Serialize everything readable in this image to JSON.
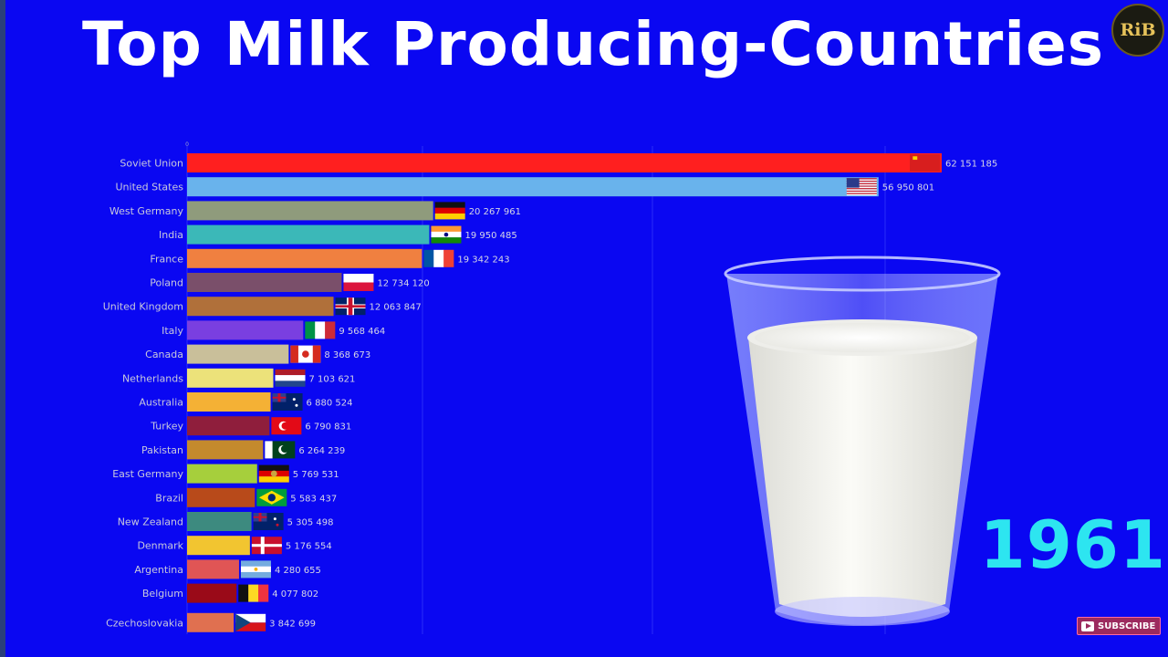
{
  "header": {
    "title": "Top Milk Producing-Countries"
  },
  "logo": {
    "text": "RiB"
  },
  "year": "1961",
  "subscribe": {
    "label": "SUBSCRIBE"
  },
  "chart_data": {
    "type": "bar",
    "orientation": "horizontal",
    "title": "Top Milk Producing-Countries",
    "period": "1961",
    "x_ticks": [
      0
    ],
    "xlim": [
      0,
      63000000
    ],
    "grid": true,
    "categories": [
      "Soviet Union",
      "United States",
      "West Germany",
      "India",
      "France",
      "Poland",
      "United Kingdom",
      "Italy",
      "Canada",
      "Netherlands",
      "Australia",
      "Turkey",
      "Pakistan",
      "East Germany",
      "Brazil",
      "New Zealand",
      "Denmark",
      "Argentina",
      "Belgium",
      "Czechoslovakia"
    ],
    "values": [
      62151185,
      56950801,
      20267961,
      19950485,
      19342243,
      12734120,
      12063847,
      9568464,
      8368673,
      7103621,
      6880524,
      6790831,
      6264239,
      5769531,
      5583437,
      5305498,
      5176554,
      4280655,
      4077802,
      3842699
    ],
    "value_labels": [
      "62 151 185",
      "56 950 801",
      "20 267 961",
      "19 950 485",
      "19 342 243",
      "12 734 120",
      "12 063 847",
      "9 568 464",
      "8 368 673",
      "7 103 621",
      "6 880 524",
      "6 790 831",
      "6 264 239",
      "5 769 531",
      "5 583 437",
      "5 305 498",
      "5 176 554",
      "4 280 655",
      "4 077 802",
      "3 842 699"
    ],
    "colors": [
      "#ff1f1f",
      "#69b3ec",
      "#8f9b7c",
      "#3bb8b8",
      "#f08040",
      "#7a4f6a",
      "#b0703a",
      "#7a3fe0",
      "#c9bf9a",
      "#ece27a",
      "#f4b135",
      "#8f1e3c",
      "#c48a2d",
      "#a6cf3c",
      "#b84a1a",
      "#3d8a7f",
      "#f2c530",
      "#e05555",
      "#9a0a18",
      "#e07050"
    ],
    "flags": [
      "flag-ussr",
      "flag-us",
      "flag-west-germany",
      "flag-india",
      "flag-france",
      "flag-poland",
      "flag-uk",
      "flag-italy",
      "flag-canada",
      "flag-netherlands",
      "flag-australia",
      "flag-turkey",
      "flag-pakistan",
      "flag-east-germany",
      "flag-brazil",
      "flag-new-zealand",
      "flag-denmark",
      "flag-argentina",
      "flag-belgium",
      "flag-czechoslovakia"
    ]
  }
}
